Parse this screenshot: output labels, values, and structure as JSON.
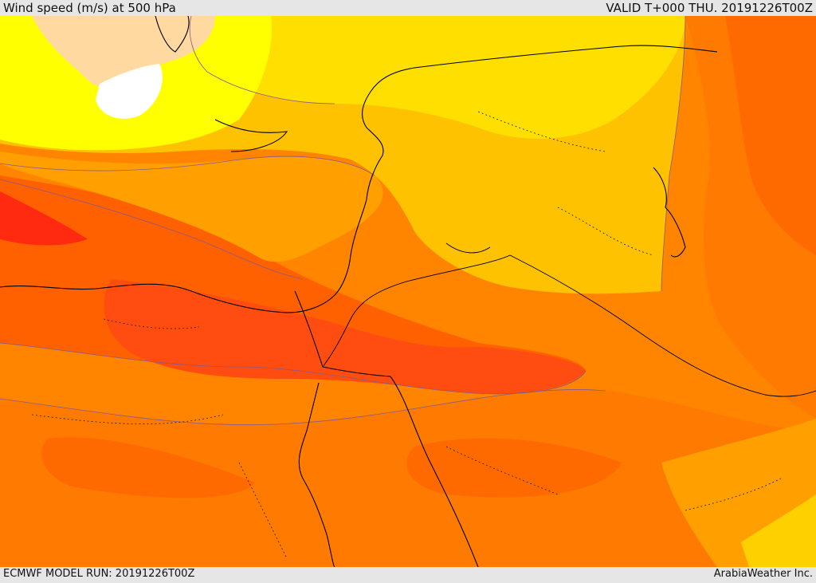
{
  "header": {
    "title": "Wind speed (m/s) at 500 hPa",
    "valid": "VALID T+000 THU. 20191226T00Z"
  },
  "footer": {
    "model_run": "ECMWF MODEL RUN: 20191226T00Z",
    "credit": "ArabiaWeather Inc."
  },
  "map": {
    "field": "wind speed at 500 hPa",
    "palette": {
      "very_light": "#ffffff",
      "light_peach": "#ffd9a0",
      "yellow": "#ffff00",
      "light_gold": "#ffdf00",
      "gold": "#ffc200",
      "orange": "#ffa000",
      "deep_orange": "#ff8400",
      "orange_red": "#ff6a00",
      "red_orange": "#ff4c10",
      "red": "#ff2a10"
    }
  }
}
